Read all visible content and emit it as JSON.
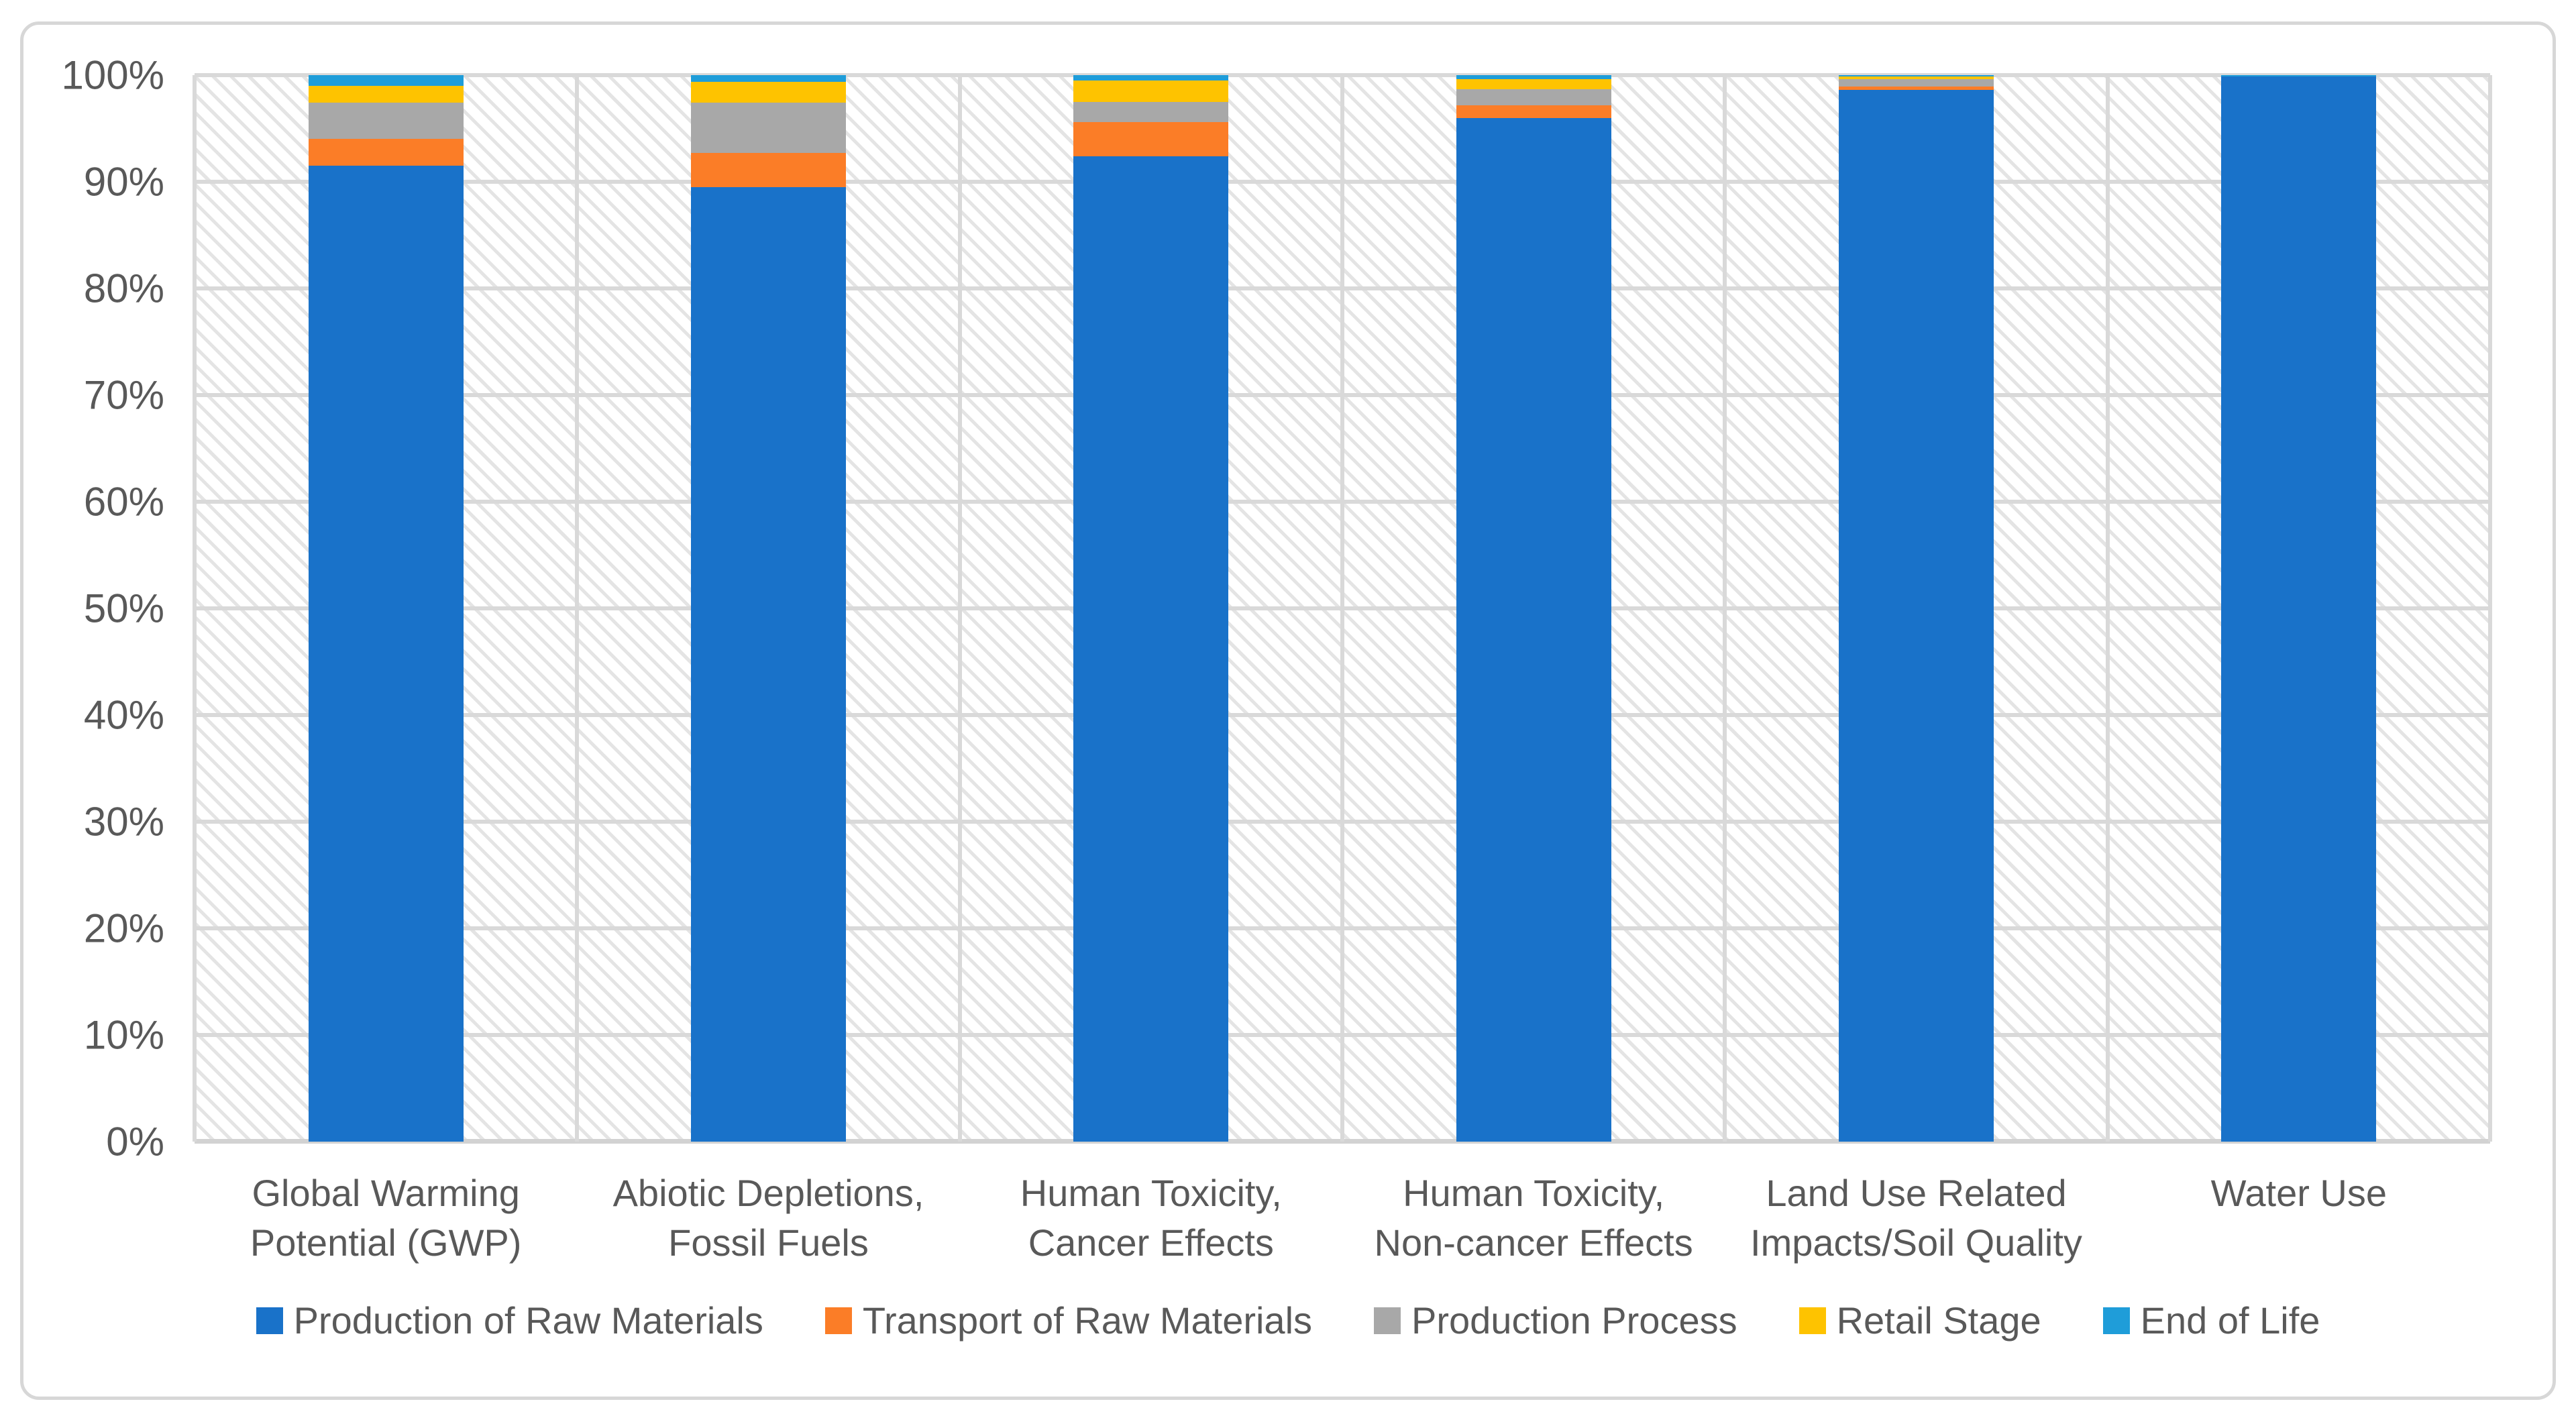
{
  "chart_data": {
    "type": "bar",
    "variant": "stacked-100-percent",
    "title": "",
    "categories": [
      "Global Warming Potential (GWP)",
      "Abiotic Depletions, Fossil Fuels",
      "Human Toxicity, Cancer Effects",
      "Human Toxicity, Non-cancer Effects",
      "Land Use Related Impacts/Soil Quality",
      "Water Use"
    ],
    "series": [
      {
        "name": "Production of Raw Materials",
        "color": "#1972C9",
        "values": [
          91.5,
          89.5,
          92.4,
          96.0,
          98.6,
          99.85
        ]
      },
      {
        "name": "Transport of Raw Materials",
        "color": "#FB7D27",
        "values": [
          2.5,
          3.2,
          3.2,
          1.2,
          0.3,
          0
        ]
      },
      {
        "name": "Production Process",
        "color": "#A8A8A8",
        "values": [
          3.4,
          4.7,
          1.9,
          1.5,
          0.75,
          0
        ]
      },
      {
        "name": "Retail Stage",
        "color": "#FEC300",
        "values": [
          1.6,
          2.0,
          2.0,
          0.9,
          0.2,
          0
        ]
      },
      {
        "name": "End of Life",
        "color": "#1F9DD9",
        "values": [
          1.0,
          0.6,
          0.5,
          0.4,
          0.15,
          0.15
        ]
      }
    ],
    "y_axis": {
      "min": 0,
      "max": 100,
      "step": 10,
      "tick_labels": [
        "0%",
        "10%",
        "20%",
        "30%",
        "40%",
        "50%",
        "60%",
        "70%",
        "80%",
        "90%",
        "100%"
      ]
    },
    "x_axis": {
      "label": ""
    },
    "legend": {
      "position": "bottom"
    },
    "grid": {
      "horizontal": true,
      "vertical": true,
      "color": "#D9D9D9"
    },
    "plot_background": "light-downward-diagonal-hatch"
  },
  "style": {
    "axis_text_color": "#595959",
    "figure_border_color": "#D7D7D7",
    "gridline_color": "#D9D9D9",
    "hatch_color": "#E4E4E4"
  }
}
